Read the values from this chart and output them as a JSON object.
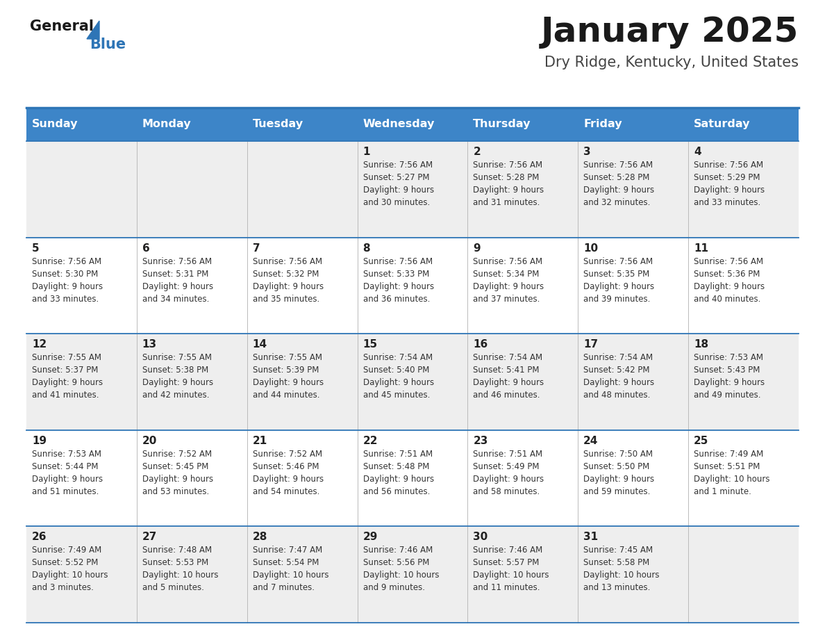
{
  "title": "January 2025",
  "subtitle": "Dry Ridge, Kentucky, United States",
  "header_color": "#3d85c8",
  "header_text_color": "#ffffff",
  "row_bg_colors": [
    "#eeeeee",
    "#ffffff",
    "#eeeeee",
    "#ffffff",
    "#eeeeee"
  ],
  "cell_text_color": "#333333",
  "day_num_color": "#222222",
  "day_headers": [
    "Sunday",
    "Monday",
    "Tuesday",
    "Wednesday",
    "Thursday",
    "Friday",
    "Saturday"
  ],
  "weeks": [
    [
      {
        "day": "",
        "info": ""
      },
      {
        "day": "",
        "info": ""
      },
      {
        "day": "",
        "info": ""
      },
      {
        "day": "1",
        "info": "Sunrise: 7:56 AM\nSunset: 5:27 PM\nDaylight: 9 hours\nand 30 minutes."
      },
      {
        "day": "2",
        "info": "Sunrise: 7:56 AM\nSunset: 5:28 PM\nDaylight: 9 hours\nand 31 minutes."
      },
      {
        "day": "3",
        "info": "Sunrise: 7:56 AM\nSunset: 5:28 PM\nDaylight: 9 hours\nand 32 minutes."
      },
      {
        "day": "4",
        "info": "Sunrise: 7:56 AM\nSunset: 5:29 PM\nDaylight: 9 hours\nand 33 minutes."
      }
    ],
    [
      {
        "day": "5",
        "info": "Sunrise: 7:56 AM\nSunset: 5:30 PM\nDaylight: 9 hours\nand 33 minutes."
      },
      {
        "day": "6",
        "info": "Sunrise: 7:56 AM\nSunset: 5:31 PM\nDaylight: 9 hours\nand 34 minutes."
      },
      {
        "day": "7",
        "info": "Sunrise: 7:56 AM\nSunset: 5:32 PM\nDaylight: 9 hours\nand 35 minutes."
      },
      {
        "day": "8",
        "info": "Sunrise: 7:56 AM\nSunset: 5:33 PM\nDaylight: 9 hours\nand 36 minutes."
      },
      {
        "day": "9",
        "info": "Sunrise: 7:56 AM\nSunset: 5:34 PM\nDaylight: 9 hours\nand 37 minutes."
      },
      {
        "day": "10",
        "info": "Sunrise: 7:56 AM\nSunset: 5:35 PM\nDaylight: 9 hours\nand 39 minutes."
      },
      {
        "day": "11",
        "info": "Sunrise: 7:56 AM\nSunset: 5:36 PM\nDaylight: 9 hours\nand 40 minutes."
      }
    ],
    [
      {
        "day": "12",
        "info": "Sunrise: 7:55 AM\nSunset: 5:37 PM\nDaylight: 9 hours\nand 41 minutes."
      },
      {
        "day": "13",
        "info": "Sunrise: 7:55 AM\nSunset: 5:38 PM\nDaylight: 9 hours\nand 42 minutes."
      },
      {
        "day": "14",
        "info": "Sunrise: 7:55 AM\nSunset: 5:39 PM\nDaylight: 9 hours\nand 44 minutes."
      },
      {
        "day": "15",
        "info": "Sunrise: 7:54 AM\nSunset: 5:40 PM\nDaylight: 9 hours\nand 45 minutes."
      },
      {
        "day": "16",
        "info": "Sunrise: 7:54 AM\nSunset: 5:41 PM\nDaylight: 9 hours\nand 46 minutes."
      },
      {
        "day": "17",
        "info": "Sunrise: 7:54 AM\nSunset: 5:42 PM\nDaylight: 9 hours\nand 48 minutes."
      },
      {
        "day": "18",
        "info": "Sunrise: 7:53 AM\nSunset: 5:43 PM\nDaylight: 9 hours\nand 49 minutes."
      }
    ],
    [
      {
        "day": "19",
        "info": "Sunrise: 7:53 AM\nSunset: 5:44 PM\nDaylight: 9 hours\nand 51 minutes."
      },
      {
        "day": "20",
        "info": "Sunrise: 7:52 AM\nSunset: 5:45 PM\nDaylight: 9 hours\nand 53 minutes."
      },
      {
        "day": "21",
        "info": "Sunrise: 7:52 AM\nSunset: 5:46 PM\nDaylight: 9 hours\nand 54 minutes."
      },
      {
        "day": "22",
        "info": "Sunrise: 7:51 AM\nSunset: 5:48 PM\nDaylight: 9 hours\nand 56 minutes."
      },
      {
        "day": "23",
        "info": "Sunrise: 7:51 AM\nSunset: 5:49 PM\nDaylight: 9 hours\nand 58 minutes."
      },
      {
        "day": "24",
        "info": "Sunrise: 7:50 AM\nSunset: 5:50 PM\nDaylight: 9 hours\nand 59 minutes."
      },
      {
        "day": "25",
        "info": "Sunrise: 7:49 AM\nSunset: 5:51 PM\nDaylight: 10 hours\nand 1 minute."
      }
    ],
    [
      {
        "day": "26",
        "info": "Sunrise: 7:49 AM\nSunset: 5:52 PM\nDaylight: 10 hours\nand 3 minutes."
      },
      {
        "day": "27",
        "info": "Sunrise: 7:48 AM\nSunset: 5:53 PM\nDaylight: 10 hours\nand 5 minutes."
      },
      {
        "day": "28",
        "info": "Sunrise: 7:47 AM\nSunset: 5:54 PM\nDaylight: 10 hours\nand 7 minutes."
      },
      {
        "day": "29",
        "info": "Sunrise: 7:46 AM\nSunset: 5:56 PM\nDaylight: 10 hours\nand 9 minutes."
      },
      {
        "day": "30",
        "info": "Sunrise: 7:46 AM\nSunset: 5:57 PM\nDaylight: 10 hours\nand 11 minutes."
      },
      {
        "day": "31",
        "info": "Sunrise: 7:45 AM\nSunset: 5:58 PM\nDaylight: 10 hours\nand 13 minutes."
      },
      {
        "day": "",
        "info": ""
      }
    ]
  ],
  "logo_text_general": "General",
  "logo_text_blue": "Blue",
  "logo_triangle_color": "#2e75b6",
  "border_line_color": "#2e75b6",
  "row_line_color": "#2e75b6",
  "col_line_color": "#bbbbbb",
  "figsize": [
    11.88,
    9.18
  ],
  "dpi": 100
}
